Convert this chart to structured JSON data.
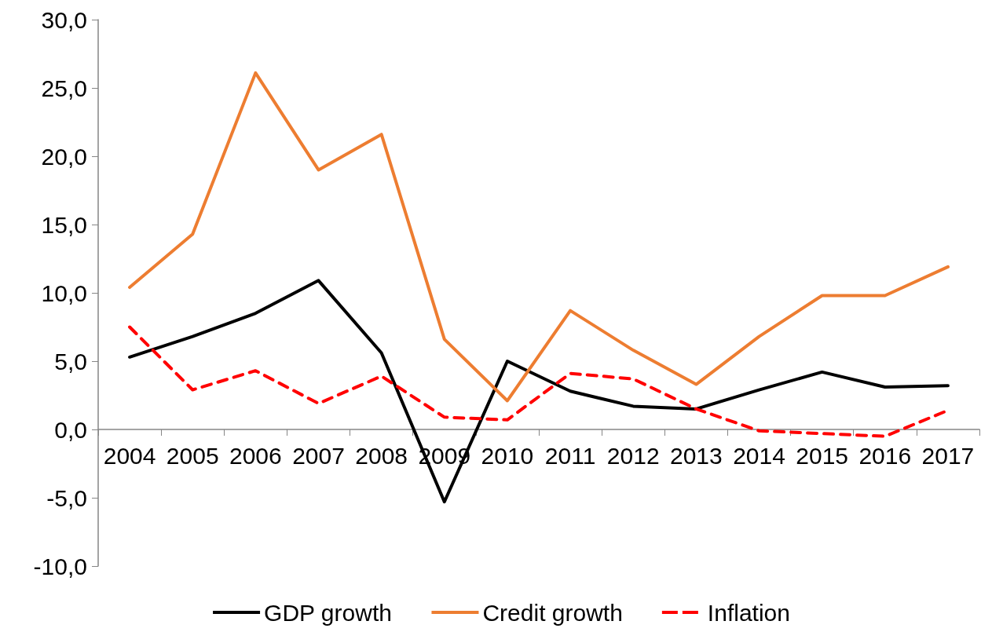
{
  "chart_data": {
    "type": "line",
    "categories": [
      "2004",
      "2005",
      "2006",
      "2007",
      "2008",
      "2009",
      "2010",
      "2011",
      "2012",
      "2013",
      "2014",
      "2015",
      "2016",
      "2017"
    ],
    "series": [
      {
        "name": "GDP growth",
        "color": "#000000",
        "line_style": "solid",
        "values": [
          5.3,
          6.8,
          8.5,
          10.9,
          5.6,
          -5.3,
          5.0,
          2.8,
          1.7,
          1.5,
          2.9,
          4.2,
          3.1,
          3.2
        ]
      },
      {
        "name": "Credit growth",
        "color": "#ed7d31",
        "line_style": "solid",
        "values": [
          10.4,
          14.3,
          26.1,
          19.0,
          21.6,
          6.6,
          2.1,
          8.7,
          5.8,
          3.3,
          6.8,
          9.8,
          9.8,
          11.9
        ]
      },
      {
        "name": "Inflation",
        "color": "#ff0000",
        "line_style": "dashed",
        "values": [
          7.5,
          2.9,
          4.3,
          1.9,
          3.9,
          0.9,
          0.7,
          4.1,
          3.7,
          1.5,
          -0.1,
          -0.3,
          -0.5,
          1.4
        ]
      }
    ],
    "ylim": [
      -10,
      30
    ],
    "yticks": [
      {
        "value": -10,
        "label": "-10,0"
      },
      {
        "value": -5,
        "label": "-5,0"
      },
      {
        "value": 0,
        "label": "0,0"
      },
      {
        "value": 5,
        "label": "5,0"
      },
      {
        "value": 10,
        "label": "10,0"
      },
      {
        "value": 15,
        "label": "15,0"
      },
      {
        "value": 20,
        "label": "20,0"
      },
      {
        "value": 25,
        "label": "25,0"
      },
      {
        "value": 30,
        "label": "30,0"
      }
    ],
    "grid": false,
    "legend": "bottom",
    "marker": "none"
  }
}
